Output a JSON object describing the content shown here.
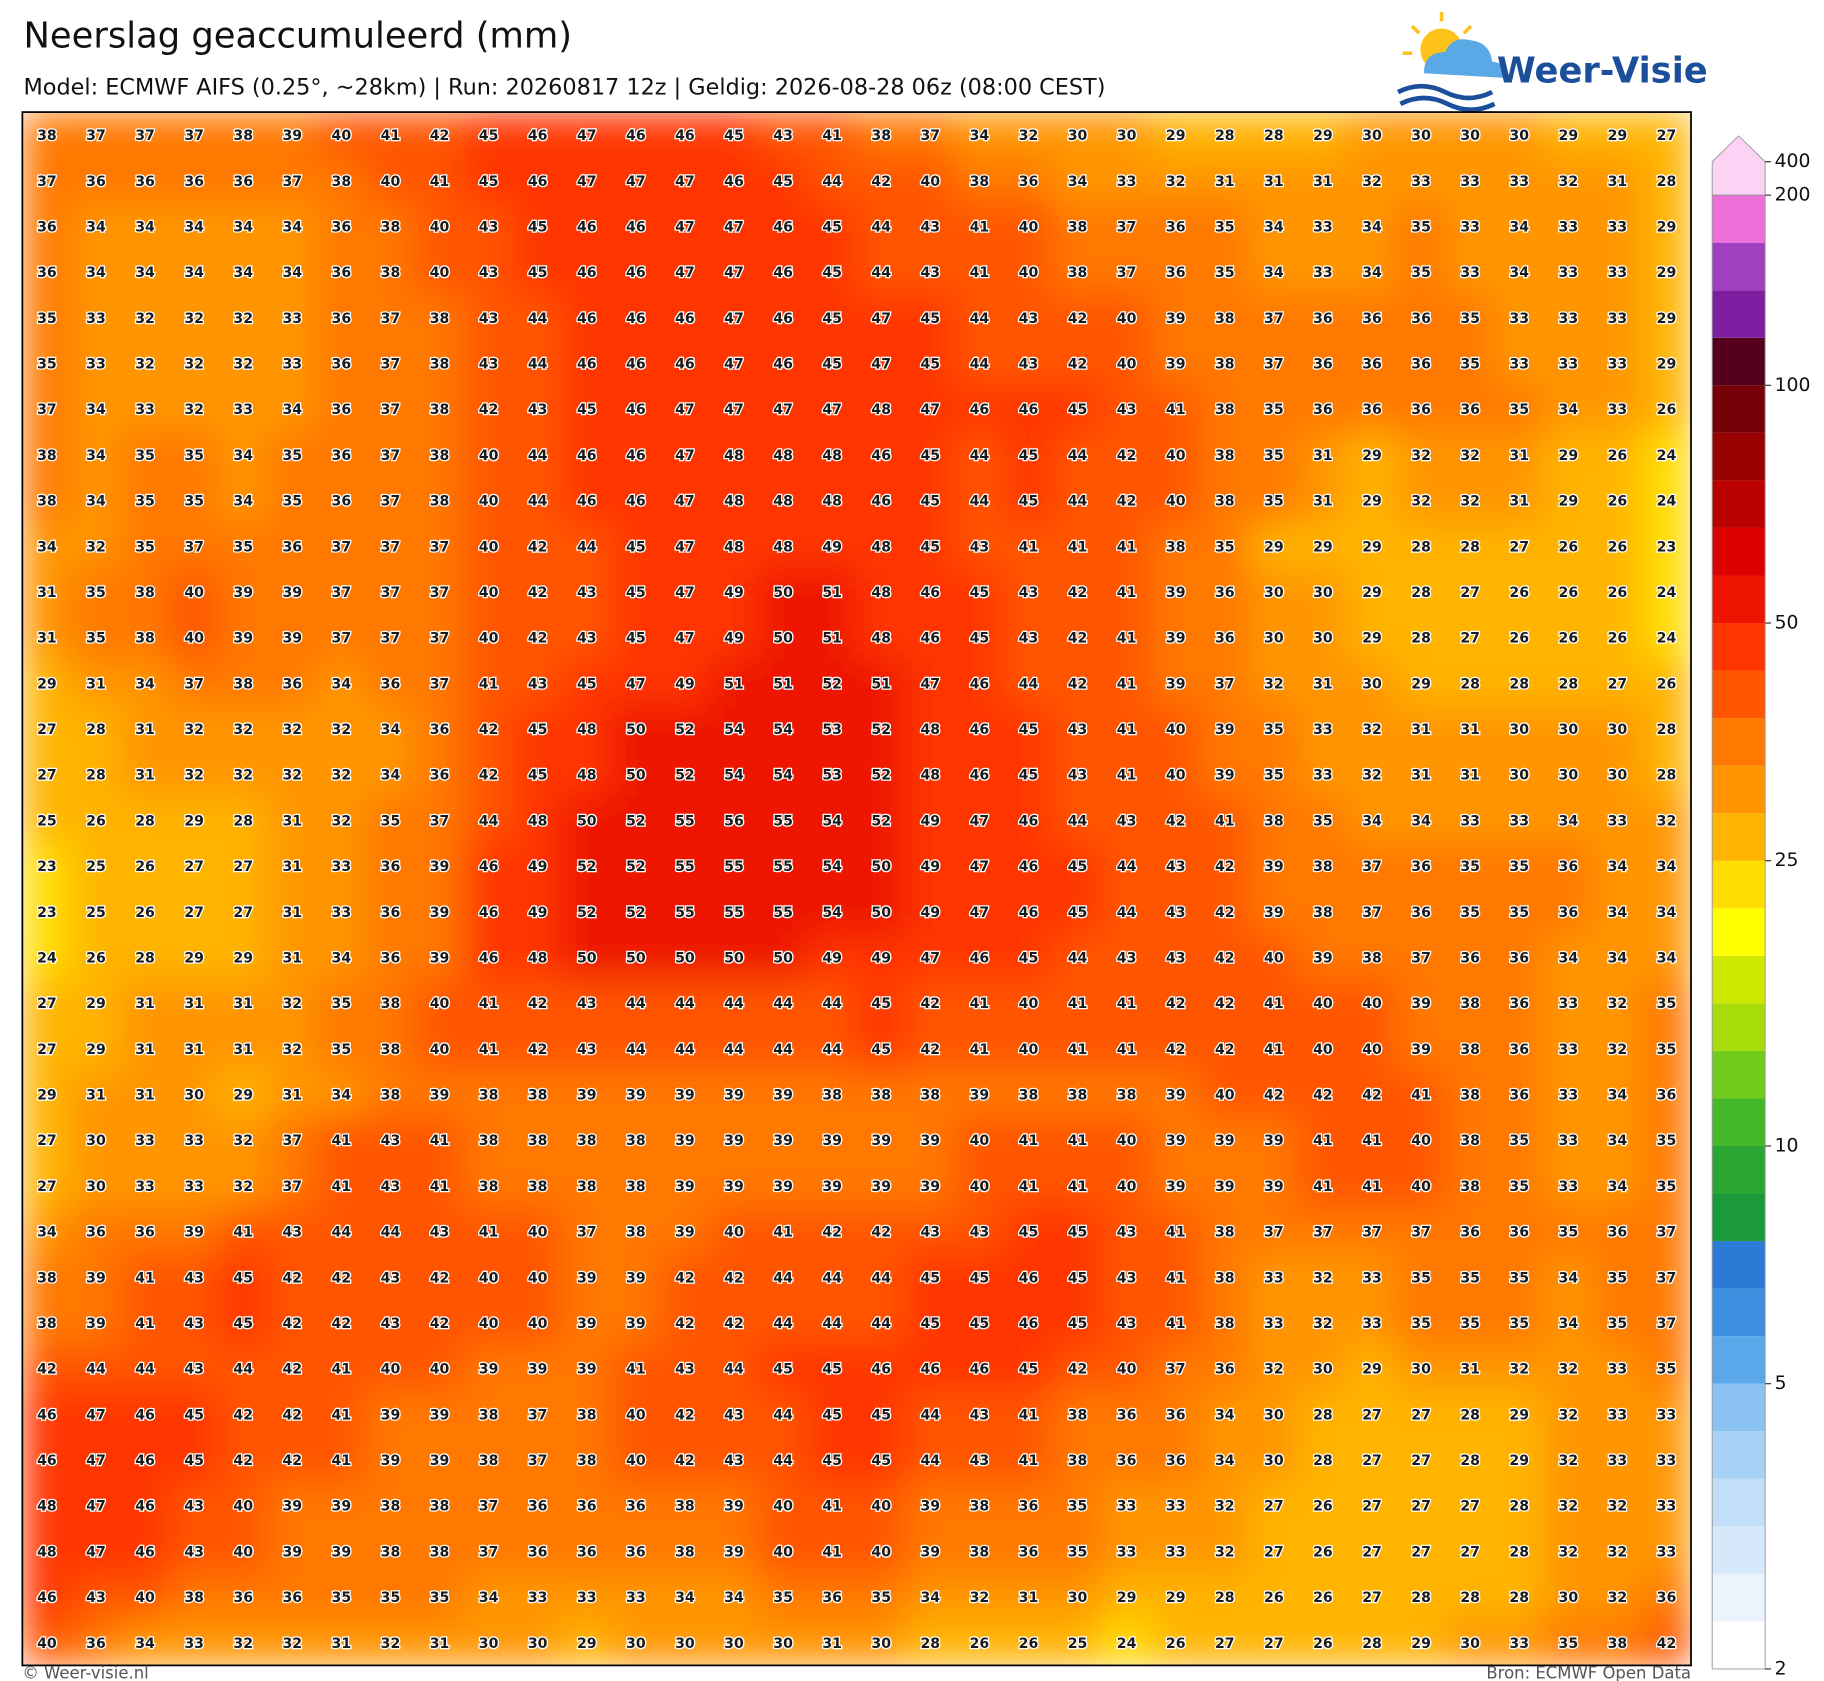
{
  "header": {
    "title": "Neerslag geaccumuleerd (mm)",
    "subtitle": "Model: ECMWF AIFS (0.25°, ~28km)  |  Run: 20260817 12z  |  Geldig: 2026-08-28 06z (08:00 CEST)"
  },
  "logo": "Weer-Visie",
  "grid": {
    "rows": [
      [
        38,
        37,
        37,
        37,
        38,
        39,
        40,
        41,
        42,
        45,
        46,
        47,
        46,
        46,
        45,
        43,
        41,
        38,
        37,
        34,
        32,
        30,
        30,
        29,
        28,
        28,
        29,
        30,
        30,
        30,
        30,
        29,
        29,
        27
      ],
      [
        37,
        36,
        36,
        36,
        36,
        37,
        38,
        40,
        41,
        45,
        46,
        47,
        47,
        47,
        46,
        45,
        44,
        42,
        40,
        38,
        36,
        34,
        33,
        32,
        31,
        31,
        31,
        32,
        33,
        33,
        33,
        32,
        31,
        28
      ],
      [
        36,
        34,
        34,
        34,
        34,
        34,
        36,
        38,
        40,
        43,
        45,
        46,
        46,
        47,
        47,
        46,
        45,
        44,
        43,
        41,
        40,
        38,
        37,
        36,
        35,
        34,
        33,
        34,
        35,
        33,
        34,
        33,
        33,
        29
      ],
      [
        36,
        34,
        34,
        34,
        34,
        34,
        36,
        38,
        40,
        43,
        45,
        46,
        46,
        47,
        47,
        46,
        45,
        44,
        43,
        41,
        40,
        38,
        37,
        36,
        35,
        34,
        33,
        34,
        35,
        33,
        34,
        33,
        33,
        29
      ],
      [
        35,
        33,
        32,
        32,
        32,
        33,
        36,
        37,
        38,
        43,
        44,
        46,
        46,
        46,
        47,
        46,
        45,
        47,
        45,
        44,
        43,
        42,
        40,
        39,
        38,
        37,
        36,
        36,
        36,
        35,
        33,
        33,
        33,
        29
      ],
      [
        35,
        33,
        32,
        32,
        32,
        33,
        36,
        37,
        38,
        43,
        44,
        46,
        46,
        46,
        47,
        46,
        45,
        47,
        45,
        44,
        43,
        42,
        40,
        39,
        38,
        37,
        36,
        36,
        36,
        35,
        33,
        33,
        33,
        29
      ],
      [
        37,
        34,
        33,
        32,
        33,
        34,
        36,
        37,
        38,
        42,
        43,
        45,
        46,
        47,
        47,
        47,
        47,
        48,
        47,
        46,
        46,
        45,
        43,
        41,
        38,
        35,
        36,
        36,
        36,
        36,
        35,
        34,
        33,
        26
      ],
      [
        38,
        34,
        35,
        35,
        34,
        35,
        36,
        37,
        38,
        40,
        44,
        46,
        46,
        47,
        48,
        48,
        48,
        46,
        45,
        44,
        45,
        44,
        42,
        40,
        38,
        35,
        31,
        29,
        32,
        32,
        31,
        29,
        26,
        24
      ],
      [
        38,
        34,
        35,
        35,
        34,
        35,
        36,
        37,
        38,
        40,
        44,
        46,
        46,
        47,
        48,
        48,
        48,
        46,
        45,
        44,
        45,
        44,
        42,
        40,
        38,
        35,
        31,
        29,
        32,
        32,
        31,
        29,
        26,
        24
      ],
      [
        34,
        32,
        35,
        37,
        35,
        36,
        37,
        37,
        37,
        40,
        42,
        44,
        45,
        47,
        48,
        48,
        49,
        48,
        45,
        43,
        41,
        41,
        41,
        38,
        35,
        29,
        29,
        29,
        28,
        28,
        27,
        26,
        26,
        23
      ],
      [
        31,
        35,
        38,
        40,
        39,
        39,
        37,
        37,
        37,
        40,
        42,
        43,
        45,
        47,
        49,
        50,
        51,
        48,
        46,
        45,
        43,
        42,
        41,
        39,
        36,
        30,
        30,
        29,
        28,
        27,
        26,
        26,
        26,
        24
      ],
      [
        31,
        35,
        38,
        40,
        39,
        39,
        37,
        37,
        37,
        40,
        42,
        43,
        45,
        47,
        49,
        50,
        51,
        48,
        46,
        45,
        43,
        42,
        41,
        39,
        36,
        30,
        30,
        29,
        28,
        27,
        26,
        26,
        26,
        24
      ],
      [
        29,
        31,
        34,
        37,
        38,
        36,
        34,
        36,
        37,
        41,
        43,
        45,
        47,
        49,
        51,
        51,
        52,
        51,
        47,
        46,
        44,
        42,
        41,
        39,
        37,
        32,
        31,
        30,
        29,
        28,
        28,
        28,
        27,
        26
      ],
      [
        27,
        28,
        31,
        32,
        32,
        32,
        32,
        34,
        36,
        42,
        45,
        48,
        50,
        52,
        54,
        54,
        53,
        52,
        48,
        46,
        45,
        43,
        41,
        40,
        39,
        35,
        33,
        32,
        31,
        31,
        30,
        30,
        30,
        28
      ],
      [
        27,
        28,
        31,
        32,
        32,
        32,
        32,
        34,
        36,
        42,
        45,
        48,
        50,
        52,
        54,
        54,
        53,
        52,
        48,
        46,
        45,
        43,
        41,
        40,
        39,
        35,
        33,
        32,
        31,
        31,
        30,
        30,
        30,
        28
      ],
      [
        25,
        26,
        28,
        29,
        28,
        31,
        32,
        35,
        37,
        44,
        48,
        50,
        52,
        55,
        56,
        55,
        54,
        52,
        49,
        47,
        46,
        44,
        43,
        42,
        41,
        38,
        35,
        34,
        34,
        33,
        33,
        34,
        33,
        32
      ],
      [
        23,
        25,
        26,
        27,
        27,
        31,
        33,
        36,
        39,
        46,
        49,
        52,
        52,
        55,
        55,
        55,
        54,
        50,
        49,
        47,
        46,
        45,
        44,
        43,
        42,
        39,
        38,
        37,
        36,
        35,
        35,
        36,
        34,
        34
      ],
      [
        23,
        25,
        26,
        27,
        27,
        31,
        33,
        36,
        39,
        46,
        49,
        52,
        52,
        55,
        55,
        55,
        54,
        50,
        49,
        47,
        46,
        45,
        44,
        43,
        42,
        39,
        38,
        37,
        36,
        35,
        35,
        36,
        34,
        34
      ],
      [
        24,
        26,
        28,
        29,
        29,
        31,
        34,
        36,
        39,
        46,
        48,
        50,
        50,
        50,
        50,
        50,
        49,
        49,
        47,
        46,
        45,
        44,
        43,
        43,
        42,
        40,
        39,
        38,
        37,
        36,
        36,
        34,
        34,
        34
      ],
      [
        27,
        29,
        31,
        31,
        31,
        32,
        35,
        38,
        40,
        41,
        42,
        43,
        44,
        44,
        44,
        44,
        44,
        45,
        42,
        41,
        40,
        41,
        41,
        42,
        42,
        41,
        40,
        40,
        39,
        38,
        36,
        33,
        32,
        35
      ],
      [
        27,
        29,
        31,
        31,
        31,
        32,
        35,
        38,
        40,
        41,
        42,
        43,
        44,
        44,
        44,
        44,
        44,
        45,
        42,
        41,
        40,
        41,
        41,
        42,
        42,
        41,
        40,
        40,
        39,
        38,
        36,
        33,
        32,
        35
      ],
      [
        29,
        31,
        31,
        30,
        29,
        31,
        34,
        38,
        39,
        38,
        38,
        39,
        39,
        39,
        39,
        39,
        38,
        38,
        38,
        39,
        38,
        38,
        38,
        39,
        40,
        42,
        42,
        42,
        41,
        38,
        36,
        33,
        34,
        36
      ],
      [
        27,
        30,
        33,
        33,
        32,
        37,
        41,
        43,
        41,
        38,
        38,
        38,
        38,
        39,
        39,
        39,
        39,
        39,
        39,
        40,
        41,
        41,
        40,
        39,
        39,
        39,
        41,
        41,
        40,
        38,
        35,
        33,
        34,
        35
      ],
      [
        27,
        30,
        33,
        33,
        32,
        37,
        41,
        43,
        41,
        38,
        38,
        38,
        38,
        39,
        39,
        39,
        39,
        39,
        39,
        40,
        41,
        41,
        40,
        39,
        39,
        39,
        41,
        41,
        40,
        38,
        35,
        33,
        34,
        35
      ],
      [
        34,
        36,
        36,
        39,
        41,
        43,
        44,
        44,
        43,
        41,
        40,
        37,
        38,
        39,
        40,
        41,
        42,
        42,
        43,
        43,
        45,
        45,
        43,
        41,
        38,
        37,
        37,
        37,
        37,
        36,
        36,
        35,
        36,
        37
      ],
      [
        38,
        39,
        41,
        43,
        45,
        42,
        42,
        43,
        42,
        40,
        40,
        39,
        39,
        42,
        42,
        44,
        44,
        44,
        45,
        45,
        46,
        45,
        43,
        41,
        38,
        33,
        32,
        33,
        35,
        35,
        35,
        34,
        35,
        37
      ],
      [
        38,
        39,
        41,
        43,
        45,
        42,
        42,
        43,
        42,
        40,
        40,
        39,
        39,
        42,
        42,
        44,
        44,
        44,
        45,
        45,
        46,
        45,
        43,
        41,
        38,
        33,
        32,
        33,
        35,
        35,
        35,
        34,
        35,
        37
      ],
      [
        42,
        44,
        44,
        43,
        44,
        42,
        41,
        40,
        40,
        39,
        39,
        39,
        41,
        43,
        44,
        45,
        45,
        46,
        46,
        46,
        45,
        42,
        40,
        37,
        36,
        32,
        30,
        29,
        30,
        31,
        32,
        32,
        33,
        35
      ],
      [
        46,
        47,
        46,
        45,
        42,
        42,
        41,
        39,
        39,
        38,
        37,
        38,
        40,
        42,
        43,
        44,
        45,
        45,
        44,
        43,
        41,
        38,
        36,
        36,
        34,
        30,
        28,
        27,
        27,
        28,
        29,
        32,
        33,
        33
      ],
      [
        46,
        47,
        46,
        45,
        42,
        42,
        41,
        39,
        39,
        38,
        37,
        38,
        40,
        42,
        43,
        44,
        45,
        45,
        44,
        43,
        41,
        38,
        36,
        36,
        34,
        30,
        28,
        27,
        27,
        28,
        29,
        32,
        33,
        33
      ],
      [
        48,
        47,
        46,
        43,
        40,
        39,
        39,
        38,
        38,
        37,
        36,
        36,
        36,
        38,
        39,
        40,
        41,
        40,
        39,
        38,
        36,
        35,
        33,
        33,
        32,
        27,
        26,
        27,
        27,
        27,
        28,
        32,
        32,
        33
      ],
      [
        48,
        47,
        46,
        43,
        40,
        39,
        39,
        38,
        38,
        37,
        36,
        36,
        36,
        38,
        39,
        40,
        41,
        40,
        39,
        38,
        36,
        35,
        33,
        33,
        32,
        27,
        26,
        27,
        27,
        27,
        28,
        32,
        32,
        33
      ],
      [
        46,
        43,
        40,
        38,
        36,
        36,
        35,
        35,
        35,
        34,
        33,
        33,
        33,
        34,
        34,
        35,
        36,
        35,
        34,
        32,
        31,
        30,
        29,
        29,
        28,
        26,
        26,
        27,
        28,
        28,
        28,
        30,
        32,
        36
      ],
      [
        40,
        36,
        34,
        33,
        32,
        32,
        31,
        32,
        31,
        30,
        30,
        29,
        30,
        30,
        30,
        30,
        31,
        30,
        28,
        26,
        26,
        25,
        24,
        26,
        27,
        27,
        26,
        28,
        29,
        30,
        33,
        35,
        38,
        42
      ]
    ]
  },
  "colorbar": {
    "levels": [
      2,
      2.5,
      3,
      3.5,
      4,
      4.5,
      5,
      6,
      7,
      8,
      9,
      10,
      12.5,
      15,
      17.5,
      20,
      22.5,
      25,
      30,
      35,
      40,
      45,
      50,
      60,
      70,
      80,
      90,
      100,
      125,
      150,
      175,
      200,
      400
    ],
    "colors": [
      "#ffffff",
      "#ebf4fd",
      "#d6e9fb",
      "#c2def9",
      "#a8d1f6",
      "#8ac2f2",
      "#5aa8ea",
      "#3d90e0",
      "#2a7ad6",
      "#1a9a3a",
      "#2ca632",
      "#45b82a",
      "#6fcc1a",
      "#a6dc0a",
      "#cfe800",
      "#ffff00",
      "#ffdd00",
      "#ffb400",
      "#ff9500",
      "#ff7800",
      "#ff5400",
      "#ff3500",
      "#ee1400",
      "#dd0000",
      "#bb0000",
      "#990000",
      "#760008",
      "#55001f",
      "#7b1fa0",
      "#a040c0",
      "#ee6ed8",
      "#fcd3f4"
    ],
    "ticks": [
      2,
      5,
      10,
      25,
      50,
      100,
      200,
      400
    ]
  },
  "footer": {
    "left": "© Weer-visie.nl",
    "right": "Bron: ECMWF Open Data"
  }
}
